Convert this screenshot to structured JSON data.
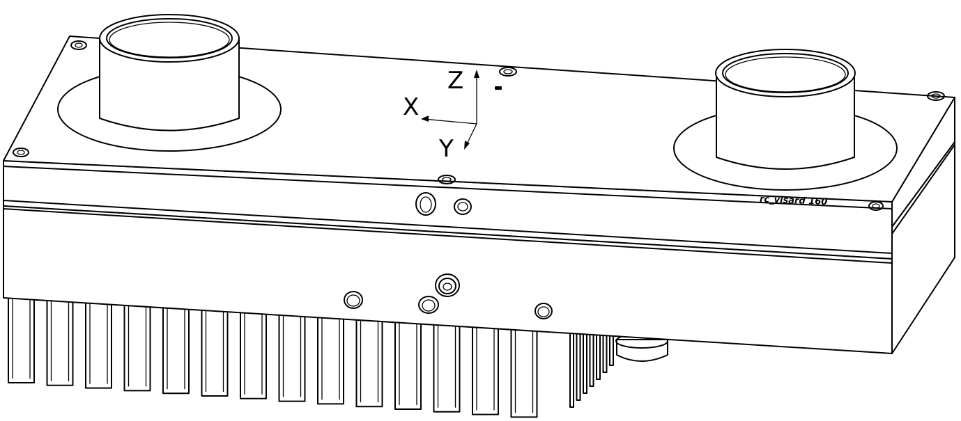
{
  "axes": {
    "z_label": "Z",
    "x_label": "X",
    "y_label": "Y"
  },
  "engraving": {
    "text": "rc_visard 160"
  },
  "colors": {
    "line": "#000000",
    "background": "#ffffff"
  }
}
